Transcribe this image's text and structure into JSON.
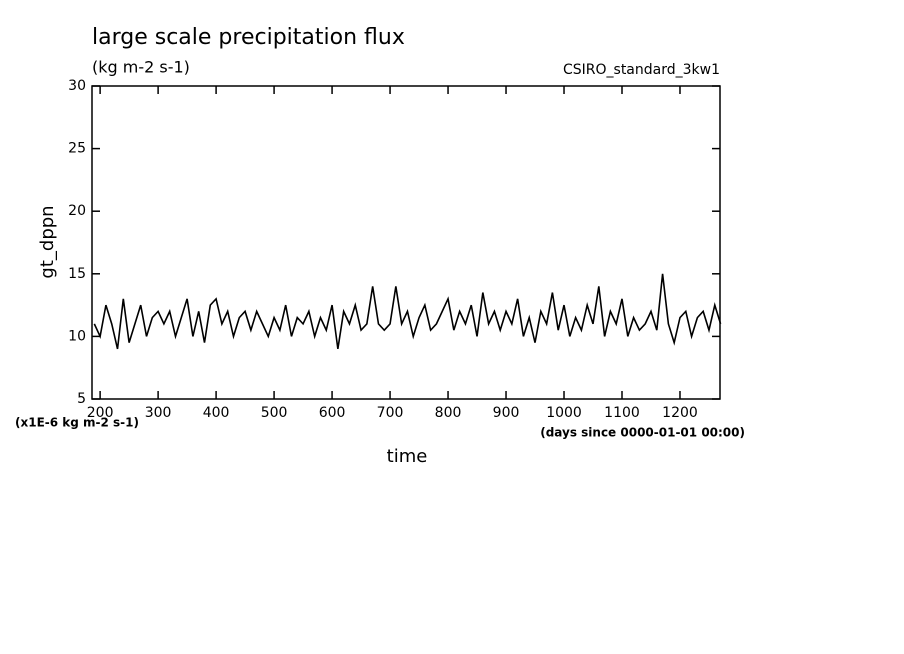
{
  "chart_data": {
    "type": "line",
    "title": "large scale precipitation flux",
    "subtitle": "(kg m-2 s-1)",
    "annotation": "CSIRO_standard_3kw1",
    "ylabel": "gt_dppn",
    "xlabel": "time",
    "y_units": "(x1E-6 kg m-2 s-1)",
    "x_units": "(days since 0000-01-01 00:00)",
    "xlim": [
      186,
      1269
    ],
    "ylim": [
      5,
      30
    ],
    "xticks": [
      200,
      300,
      400,
      500,
      600,
      700,
      800,
      900,
      1000,
      1100,
      1200
    ],
    "yticks": [
      5,
      10,
      15,
      20,
      25,
      30
    ],
    "color": "#000000",
    "x": [
      190,
      200,
      210,
      220,
      230,
      240,
      250,
      260,
      270,
      280,
      290,
      300,
      310,
      320,
      330,
      340,
      350,
      360,
      370,
      380,
      390,
      400,
      410,
      420,
      430,
      440,
      450,
      460,
      470,
      480,
      490,
      500,
      510,
      520,
      530,
      540,
      550,
      560,
      570,
      580,
      590,
      600,
      610,
      620,
      630,
      640,
      650,
      660,
      670,
      680,
      690,
      700,
      710,
      720,
      730,
      740,
      750,
      760,
      770,
      780,
      790,
      800,
      810,
      820,
      830,
      840,
      850,
      860,
      870,
      880,
      890,
      900,
      910,
      920,
      930,
      940,
      950,
      960,
      970,
      980,
      990,
      1000,
      1010,
      1020,
      1030,
      1040,
      1050,
      1060,
      1070,
      1080,
      1090,
      1100,
      1110,
      1120,
      1130,
      1140,
      1150,
      1160,
      1170,
      1180,
      1190,
      1200,
      1210,
      1220,
      1230,
      1240,
      1250,
      1260,
      1270
    ],
    "values": [
      11,
      10,
      12.5,
      11,
      9,
      13,
      9.5,
      11,
      12.5,
      10,
      11.5,
      12,
      11,
      12,
      10,
      11.5,
      13,
      10,
      12,
      9.5,
      12.5,
      13,
      11,
      12,
      10,
      11.5,
      12,
      10.5,
      12,
      11,
      10,
      11.5,
      10.5,
      12.5,
      10,
      11.5,
      11,
      12,
      10,
      11.5,
      10.5,
      12.5,
      9,
      12,
      11,
      12.5,
      10.5,
      11,
      14,
      11,
      10.5,
      11,
      14,
      11,
      12,
      10,
      11.5,
      12.5,
      10.5,
      11,
      12,
      13,
      10.5,
      12,
      11,
      12.5,
      10,
      13.5,
      11,
      12,
      10.5,
      12,
      11,
      13,
      10,
      11.5,
      9.5,
      12,
      11,
      13.5,
      10.5,
      12.5,
      10,
      11.5,
      10.5,
      12.5,
      11,
      14,
      10,
      12,
      11,
      13,
      10,
      11.5,
      10.5,
      11,
      12,
      10.5,
      15,
      11,
      9.5,
      11.5,
      12,
      10,
      11.5,
      12,
      10.5,
      12.5,
      11
    ]
  }
}
